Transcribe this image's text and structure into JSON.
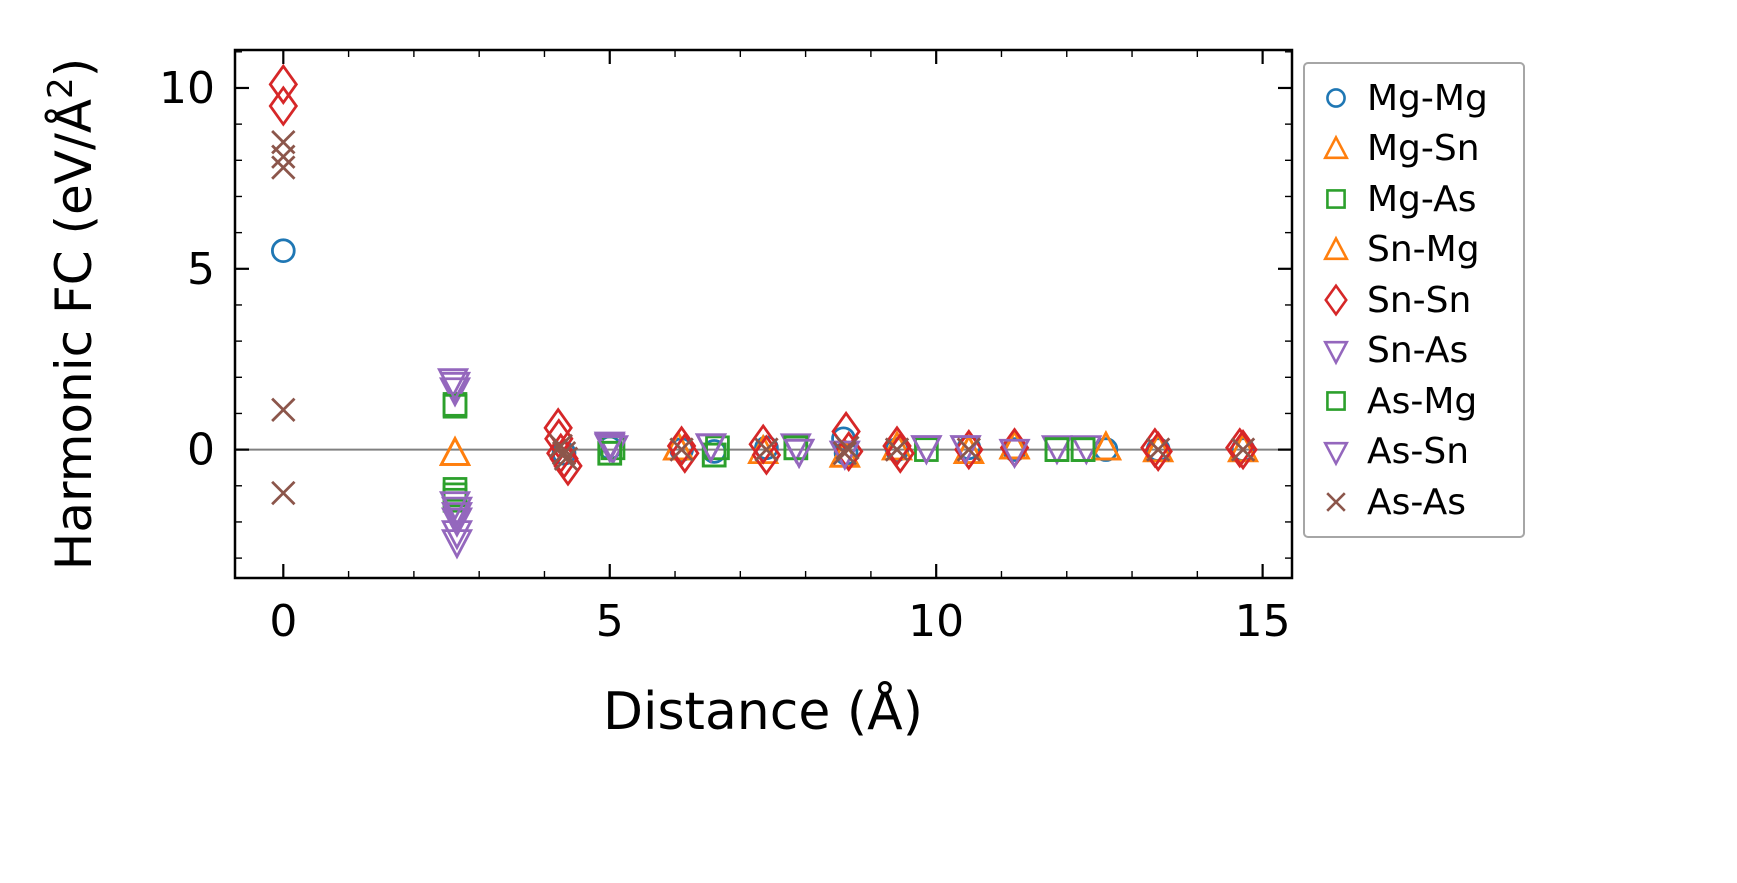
{
  "figure": {
    "background": "#ffffff"
  },
  "chart_data": {
    "type": "scatter",
    "title": "",
    "xlabel": "Distance (Å)",
    "ylabel": "Harmonic FC (eV/Å²)",
    "ylabel_parts": {
      "prefix": "Harmonic FC (eV/Å",
      "superscript": "2",
      "suffix": ")"
    },
    "xlim": [
      -0.74,
      15.45
    ],
    "ylim": [
      -3.55,
      11.05
    ],
    "x_major_ticks": [
      0,
      5,
      10,
      15
    ],
    "y_major_ticks": [
      0,
      5,
      10
    ],
    "x_minor_step": 1,
    "y_minor_step": 1,
    "grid": false,
    "zero_line": {
      "y": 0,
      "color": "#808080"
    },
    "legend_position": "outside-right",
    "series": [
      {
        "name": "Mg-Mg",
        "marker": "circle",
        "color": "#1f77b4",
        "x": [
          0,
          4.3,
          5.0,
          6.1,
          6.6,
          7.4,
          8.58,
          8.62,
          9.4,
          10.5,
          11.2,
          12.6,
          13.4,
          14.7
        ],
        "y": [
          5.5,
          -0.1,
          0.05,
          0.0,
          -0.05,
          0.05,
          0.3,
          -0.1,
          0.0,
          0.05,
          0.0,
          0.0,
          0.0,
          0.0
        ]
      },
      {
        "name": "Mg-Sn",
        "marker": "triangle-up",
        "color": "#ff7f0e",
        "x": [
          2.63,
          6.05,
          7.35,
          8.6,
          9.4,
          10.5,
          11.2,
          12.6,
          13.4,
          14.7
        ],
        "y": [
          -0.1,
          0.05,
          -0.05,
          -0.15,
          0.05,
          -0.05,
          0.08,
          0.05,
          0.0,
          0.0
        ]
      },
      {
        "name": "Mg-As",
        "marker": "square",
        "color": "#2ca02c",
        "x": [
          2.63,
          2.63,
          2.63,
          2.63,
          5.0,
          5.05,
          6.6,
          6.65,
          7.85,
          9.85,
          11.85,
          12.25
        ],
        "y": [
          1.25,
          -1.1,
          -1.25,
          -1.4,
          -0.1,
          0.05,
          -0.15,
          0.05,
          0.05,
          0.0,
          0.0,
          0.0
        ]
      },
      {
        "name": "Sn-Mg",
        "marker": "triangle-up",
        "color": "#ff7f0e",
        "x": [
          2.63,
          6.05,
          8.6,
          10.5,
          11.2,
          12.6
        ],
        "y": [
          -0.1,
          0.05,
          -0.15,
          -0.05,
          0.08,
          0.05
        ]
      },
      {
        "name": "Sn-Sn",
        "marker": "diamond",
        "color": "#d62728",
        "x": [
          0,
          0,
          4.21,
          4.22,
          4.25,
          4.3,
          4.36,
          6.1,
          6.15,
          7.35,
          7.4,
          8.62,
          8.66,
          9.4,
          9.45,
          10.5,
          11.2,
          13.35,
          13.4,
          14.65,
          14.7
        ],
        "y": [
          10.1,
          9.5,
          0.6,
          0.3,
          -0.1,
          -0.25,
          -0.45,
          0.1,
          -0.1,
          0.15,
          -0.15,
          0.5,
          -0.05,
          0.1,
          -0.1,
          0.0,
          0.05,
          0.05,
          -0.05,
          0.05,
          0.0
        ]
      },
      {
        "name": "Sn-As",
        "marker": "triangle-down",
        "color": "#9467bd",
        "x": [
          2.6,
          2.63,
          2.63,
          2.66,
          2.66,
          2.66,
          2.66,
          5.0,
          5.05,
          6.55,
          7.85,
          7.9,
          8.6,
          9.85,
          10.45,
          11.2,
          11.85,
          12.3
        ],
        "y": [
          1.9,
          1.65,
          -1.5,
          -1.65,
          -1.95,
          -2.3,
          -2.55,
          0.15,
          0.05,
          0.1,
          0.1,
          -0.05,
          -0.1,
          0.05,
          0.05,
          -0.05,
          0.05,
          0.05
        ]
      },
      {
        "name": "As-Mg",
        "marker": "square",
        "color": "#2ca02c",
        "x": [
          2.63,
          5.0,
          6.6,
          7.85,
          11.85,
          12.25
        ],
        "y": [
          1.2,
          -0.1,
          -0.15,
          0.05,
          0.0,
          0.0
        ]
      },
      {
        "name": "As-Sn",
        "marker": "triangle-down",
        "color": "#9467bd",
        "x": [
          2.63,
          2.66,
          5.0,
          6.55,
          7.9,
          9.85,
          10.45
        ],
        "y": [
          1.8,
          -1.8,
          0.1,
          0.1,
          -0.05,
          0.05,
          0.05
        ]
      },
      {
        "name": "As-As",
        "marker": "x",
        "color": "#8c564b",
        "x": [
          0,
          0,
          0,
          0,
          0,
          4.25,
          4.3,
          4.33,
          6.1,
          7.4,
          8.6,
          8.64,
          9.4,
          10.5,
          13.4,
          14.7
        ],
        "y": [
          8.5,
          8.1,
          7.8,
          1.1,
          -1.2,
          0.1,
          -0.1,
          -0.25,
          0.0,
          0.0,
          -0.1,
          0.05,
          0.0,
          0.0,
          0.0,
          0.0
        ]
      }
    ]
  }
}
